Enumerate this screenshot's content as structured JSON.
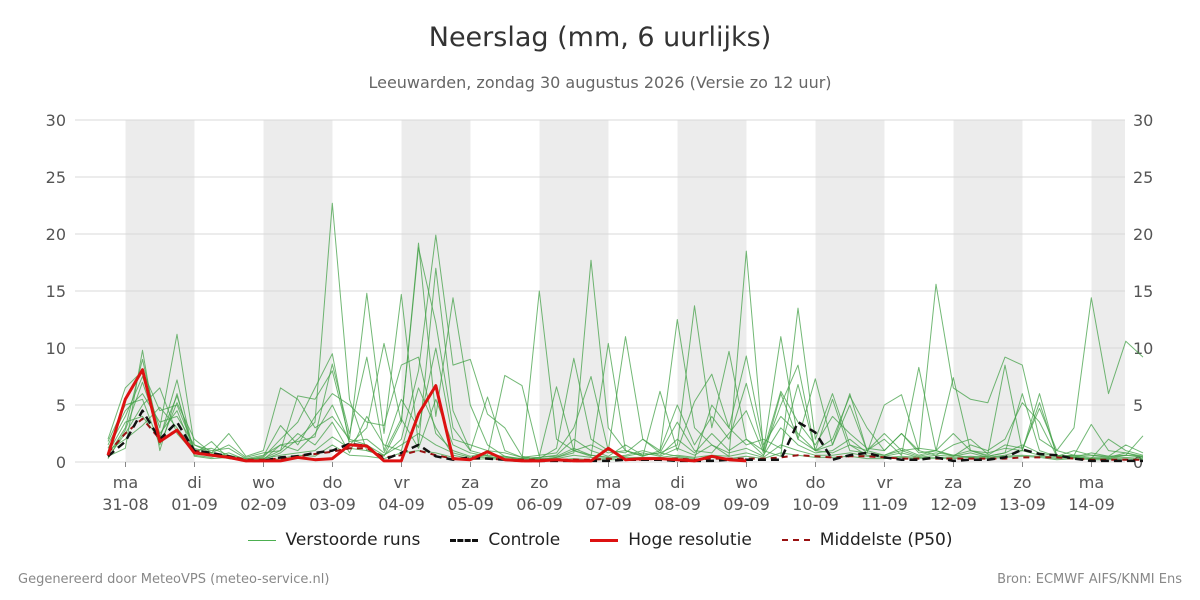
{
  "header": {
    "title": "Neerslag (mm, 6 uurlijks)",
    "subtitle": "Leeuwarden, zondag 30 augustus 2026 (Versie zo 12 uur)"
  },
  "footer": {
    "left": "Gegenereerd door MeteoVPS (meteo-service.nl)",
    "right": "Bron: ECMWF AIFS/KNMI Ens"
  },
  "legend": [
    {
      "label": "Verstoorde runs",
      "color": "#4caf50",
      "style": "thin"
    },
    {
      "label": "Controle",
      "color": "#111111",
      "style": "dashed"
    },
    {
      "label": "Hoge resolutie",
      "color": "#dd1111",
      "style": "solid"
    },
    {
      "label": "Middelste (P50)",
      "color": "#991111",
      "style": "dashed-thin"
    }
  ],
  "chart_data": {
    "type": "line",
    "title": "Neerslag (mm, 6 uurlijks)",
    "subtitle": "Leeuwarden, zondag 30 augustus 2026 (Versie zo 12 uur)",
    "x_start": "2026-08-30 12:00",
    "x_step_hours": 6,
    "ylim": [
      0,
      30
    ],
    "yticks": [
      0,
      5,
      10,
      15,
      20,
      25,
      30
    ],
    "grid": true,
    "legend_position": "bottom",
    "xticks": [
      {
        "day": "ma",
        "date": "31-08"
      },
      {
        "day": "di",
        "date": "01-09"
      },
      {
        "day": "wo",
        "date": "02-09"
      },
      {
        "day": "do",
        "date": "03-09"
      },
      {
        "day": "vr",
        "date": "04-09"
      },
      {
        "day": "za",
        "date": "05-09"
      },
      {
        "day": "zo",
        "date": "06-09"
      },
      {
        "day": "ma",
        "date": "07-09"
      },
      {
        "day": "di",
        "date": "08-09"
      },
      {
        "day": "wo",
        "date": "09-09"
      },
      {
        "day": "do",
        "date": "10-09"
      },
      {
        "day": "vr",
        "date": "11-09"
      },
      {
        "day": "za",
        "date": "12-09"
      },
      {
        "day": "zo",
        "date": "13-09"
      },
      {
        "day": "ma",
        "date": "14-09"
      }
    ],
    "shaded_days": [
      "31-08",
      "02-09",
      "04-09",
      "06-09",
      "08-09",
      "10-09",
      "12-09",
      "14-09"
    ],
    "series": [
      {
        "name": "Hoge resolutie",
        "color": "#dd1111",
        "values": [
          0.6,
          5.5,
          8.1,
          1.8,
          2.8,
          0.8,
          0.6,
          0.4,
          0.1,
          0.1,
          0.1,
          0.4,
          0.2,
          0.3,
          1.5,
          1.4,
          0.1,
          0.1,
          4.2,
          6.7,
          0.3,
          0.2,
          0.9,
          0.2,
          0.1,
          0.1,
          0.2,
          0.1,
          0.1,
          1.2,
          0.2,
          0.3,
          0.3,
          0.2,
          0.1,
          0.5,
          0.2,
          0.1
        ]
      },
      {
        "name": "Controle",
        "color": "#111111",
        "values": [
          0.5,
          1.8,
          4.5,
          2.0,
          3.5,
          1.0,
          0.8,
          0.5,
          0.1,
          0.1,
          0.4,
          0.5,
          0.8,
          1.0,
          1.6,
          1.4,
          0.2,
          0.8,
          1.5,
          0.5,
          0.2,
          0.4,
          0.3,
          0.2,
          0.1,
          0.1,
          0.1,
          0.1,
          0.1,
          0.1,
          0.2,
          0.2,
          0.2,
          0.1,
          0.1,
          0.1,
          0.2,
          0.2,
          0.2,
          0.2,
          3.5,
          2.6,
          0.2,
          0.6,
          0.8,
          0.4,
          0.2,
          0.2,
          0.4,
          0.1,
          0.2,
          0.2,
          0.4,
          1.1,
          0.7,
          0.6,
          0.3,
          0.1,
          0.1,
          0.1,
          0.1
        ]
      },
      {
        "name": "Middelste (P50)",
        "color": "#991111",
        "values": [
          0.8,
          2.5,
          3.8,
          2.0,
          2.8,
          1.0,
          0.7,
          0.5,
          0.2,
          0.2,
          0.3,
          0.5,
          0.7,
          0.9,
          1.2,
          1.2,
          0.4,
          0.6,
          1.0,
          0.6,
          0.3,
          0.3,
          0.3,
          0.2,
          0.2,
          0.2,
          0.2,
          0.2,
          0.2,
          0.3,
          0.2,
          0.2,
          0.3,
          0.3,
          0.2,
          0.3,
          0.3,
          0.3,
          0.3,
          0.4,
          0.6,
          0.5,
          0.4,
          0.5,
          0.5,
          0.4,
          0.3,
          0.3,
          0.3,
          0.3,
          0.3,
          0.3,
          0.3,
          0.4,
          0.4,
          0.4,
          0.3,
          0.2,
          0.2,
          0.2,
          0.2
        ]
      },
      {
        "name": "Verstoorde runs",
        "color": "#4caf50",
        "values": [
          1.2,
          4.0,
          7.5,
          3.0,
          11.2,
          1.5,
          0.8,
          0.5,
          0.2,
          0.3,
          1.0,
          5.8,
          5.5,
          8.0,
          2.0,
          1.5,
          0.6,
          2.0,
          8.0,
          19.9,
          8.5,
          9.0,
          4.2,
          3.0,
          0.5,
          0.2,
          0.4,
          0.8,
          17.7,
          3.0,
          1.0,
          0.6,
          0.8,
          0.5,
          0.3,
          5.0,
          3.0,
          1.5,
          2.0,
          1.2,
          6.8,
          1.0,
          2.0,
          5.8,
          3.0,
          1.0,
          2.5,
          1.0,
          15.6,
          6.5,
          5.5,
          5.2,
          9.2,
          8.5,
          2.0,
          1.0,
          3.0,
          14.4,
          6.0,
          10.6,
          9.2
        ]
      },
      {
        "name": "Verstoorde runs",
        "color": "#4caf50",
        "values": [
          0.6,
          3.0,
          9.0,
          2.2,
          5.8,
          1.0,
          0.6,
          0.4,
          0.2,
          0.2,
          0.8,
          2.0,
          3.5,
          22.7,
          5.5,
          1.0,
          0.5,
          3.5,
          19.2,
          4.0,
          14.4,
          5.0,
          1.5,
          0.5,
          0.2,
          15.0,
          2.0,
          1.0,
          0.5,
          10.4,
          1.0,
          0.5,
          1.0,
          12.5,
          3.0,
          1.5,
          0.5,
          18.5,
          1.0,
          0.5,
          13.5,
          2.0,
          6.0,
          1.5,
          1.0,
          2.0,
          0.6,
          8.3,
          1.0,
          0.6,
          0.4,
          0.5,
          0.8,
          6.0,
          1.0,
          0.5,
          0.4,
          0.3,
          2.0,
          1.0,
          0.6
        ]
      },
      {
        "name": "Verstoorde runs",
        "color": "#4caf50",
        "values": [
          2.0,
          6.5,
          8.0,
          4.5,
          5.0,
          1.2,
          0.8,
          2.5,
          0.5,
          1.0,
          6.5,
          5.5,
          3.0,
          4.0,
          2.0,
          14.8,
          2.5,
          14.7,
          1.5,
          17.0,
          4.5,
          1.0,
          5.7,
          1.0,
          0.4,
          0.3,
          1.2,
          9.1,
          2.0,
          1.0,
          11.0,
          2.0,
          0.8,
          1.5,
          13.7,
          3.0,
          9.7,
          2.0,
          1.0,
          11.0,
          2.0,
          7.3,
          1.5,
          5.0,
          1.0,
          2.5,
          1.0,
          1.2,
          1.0,
          7.4,
          1.0,
          0.8,
          1.2,
          1.0,
          5.2,
          0.6,
          0.4,
          0.8,
          0.5,
          0.6,
          2.3
        ]
      },
      {
        "name": "Verstoorde runs",
        "color": "#4caf50",
        "values": [
          0.4,
          2.5,
          5.0,
          6.5,
          2.5,
          0.8,
          0.6,
          0.3,
          0.2,
          0.4,
          2.0,
          3.5,
          6.5,
          9.5,
          1.5,
          3.0,
          10.4,
          3.5,
          18.8,
          12.2,
          3.0,
          1.0,
          0.6,
          7.6,
          6.7,
          0.5,
          6.6,
          1.0,
          1.5,
          0.8,
          1.0,
          0.5,
          6.2,
          1.0,
          5.3,
          7.7,
          3.0,
          9.3,
          1.5,
          4.0,
          2.5,
          1.0,
          5.5,
          1.0,
          0.8,
          5.0,
          5.9,
          1.0,
          0.6,
          1.5,
          2.0,
          0.7,
          8.5,
          1.0,
          6.0,
          0.5,
          0.6,
          3.3,
          1.0,
          0.8,
          0.4
        ]
      },
      {
        "name": "Verstoorde runs",
        "color": "#4caf50",
        "values": [
          1.5,
          4.5,
          6.0,
          3.5,
          4.0,
          1.5,
          1.0,
          1.2,
          0.3,
          0.6,
          1.5,
          1.8,
          2.2,
          8.6,
          2.5,
          9.2,
          1.0,
          5.5,
          3.0,
          10.0,
          2.0,
          1.5,
          1.0,
          0.8,
          0.4,
          0.6,
          0.8,
          3.0,
          7.5,
          1.0,
          0.8,
          2.0,
          1.0,
          5.0,
          1.5,
          4.0,
          2.0,
          6.9,
          1.0,
          6.2,
          3.5,
          1.5,
          4.0,
          2.5,
          1.2,
          1.0,
          2.5,
          0.8,
          1.0,
          2.5,
          1.0,
          0.6,
          1.5,
          1.2,
          4.7,
          1.0,
          0.6,
          0.6,
          0.5,
          1.5,
          0.8
        ]
      },
      {
        "name": "Verstoorde runs",
        "color": "#4caf50",
        "values": [
          0.8,
          3.5,
          4.0,
          2.0,
          7.2,
          0.6,
          0.4,
          0.8,
          0.2,
          0.5,
          3.2,
          1.5,
          4.0,
          6.0,
          5.0,
          3.5,
          3.2,
          8.5,
          9.2,
          2.5,
          1.0,
          0.5,
          0.8,
          0.4,
          0.3,
          0.4,
          0.6,
          2.0,
          1.0,
          0.5,
          1.5,
          0.6,
          0.8,
          3.5,
          1.0,
          0.8,
          2.5,
          4.5,
          0.8,
          5.0,
          8.5,
          1.0,
          1.5,
          6.0,
          1.0,
          0.6,
          1.2,
          0.6,
          1.0,
          0.5,
          1.5,
          1.0,
          2.0,
          5.2,
          3.5,
          0.5,
          1.0,
          0.6,
          0.4,
          0.8,
          0.5
        ]
      },
      {
        "name": "Verstoorde runs",
        "color": "#4caf50",
        "values": [
          0.5,
          1.2,
          9.8,
          1.0,
          6.0,
          0.5,
          0.3,
          0.4,
          0.1,
          0.2,
          1.5,
          1.0,
          2.5,
          5.0,
          1.8,
          2.0,
          0.8,
          3.8,
          1.2,
          5.5,
          1.5,
          0.8,
          0.5,
          0.3,
          0.2,
          0.2,
          0.4,
          1.0,
          0.6,
          0.4,
          0.5,
          0.8,
          0.5,
          1.2,
          0.6,
          1.5,
          0.8,
          1.2,
          0.5,
          6.0,
          2.0,
          1.0,
          0.8,
          1.5,
          0.6,
          0.5,
          0.8,
          0.4,
          0.6,
          0.5,
          0.8,
          0.4,
          0.6,
          1.0,
          0.6,
          0.4,
          0.5,
          0.3,
          0.3,
          0.6,
          0.4
        ]
      },
      {
        "name": "Verstoorde runs",
        "color": "#4caf50",
        "values": [
          1.0,
          2.0,
          3.2,
          4.8,
          3.0,
          1.0,
          1.2,
          0.6,
          0.3,
          0.3,
          0.6,
          0.8,
          1.0,
          2.2,
          1.2,
          1.0,
          0.6,
          1.5,
          2.5,
          1.5,
          0.8,
          0.4,
          0.4,
          0.3,
          0.2,
          0.3,
          0.3,
          0.6,
          0.4,
          0.3,
          0.4,
          0.4,
          0.4,
          0.6,
          0.4,
          0.6,
          0.5,
          0.8,
          0.4,
          1.5,
          1.0,
          0.6,
          0.6,
          0.8,
          0.5,
          0.4,
          0.5,
          0.4,
          0.4,
          0.4,
          0.5,
          0.4,
          0.5,
          0.6,
          0.5,
          0.3,
          0.4,
          0.3,
          0.3,
          0.4,
          0.3
        ]
      },
      {
        "name": "Verstoorde runs",
        "color": "#4caf50",
        "values": [
          1.8,
          5.0,
          5.5,
          1.5,
          5.2,
          2.0,
          0.8,
          1.5,
          0.4,
          0.8,
          1.0,
          2.5,
          1.5,
          3.5,
          0.8,
          4.0,
          1.5,
          1.0,
          6.5,
          3.0,
          0.6,
          0.3,
          0.6,
          0.5,
          0.3,
          0.4,
          0.5,
          1.2,
          0.6,
          0.4,
          0.6,
          1.0,
          0.6,
          2.0,
          0.8,
          2.5,
          1.0,
          2.0,
          0.6,
          3.0,
          1.5,
          0.8,
          1.0,
          2.0,
          0.8,
          0.6,
          1.0,
          0.5,
          0.8,
          0.6,
          1.0,
          0.5,
          0.8,
          1.5,
          0.8,
          0.5,
          0.6,
          0.4,
          0.4,
          0.6,
          0.5
        ]
      },
      {
        "name": "Verstoorde runs",
        "color": "#4caf50",
        "values": [
          0.3,
          2.8,
          7.0,
          2.5,
          4.5,
          0.7,
          1.8,
          0.3,
          0.1,
          0.1,
          0.3,
          0.6,
          0.5,
          1.5,
          0.6,
          0.5,
          0.3,
          0.8,
          1.0,
          0.8,
          0.4,
          0.2,
          0.3,
          0.2,
          0.1,
          0.2,
          0.2,
          0.3,
          0.2,
          0.2,
          0.2,
          0.3,
          0.3,
          0.4,
          0.2,
          0.4,
          0.3,
          0.5,
          0.3,
          0.8,
          0.6,
          0.4,
          0.4,
          0.5,
          0.3,
          0.3,
          0.4,
          0.3,
          0.3,
          0.3,
          0.4,
          0.3,
          0.4,
          0.5,
          0.4,
          0.2,
          0.3,
          0.2,
          0.2,
          0.3,
          0.2
        ]
      }
    ]
  }
}
